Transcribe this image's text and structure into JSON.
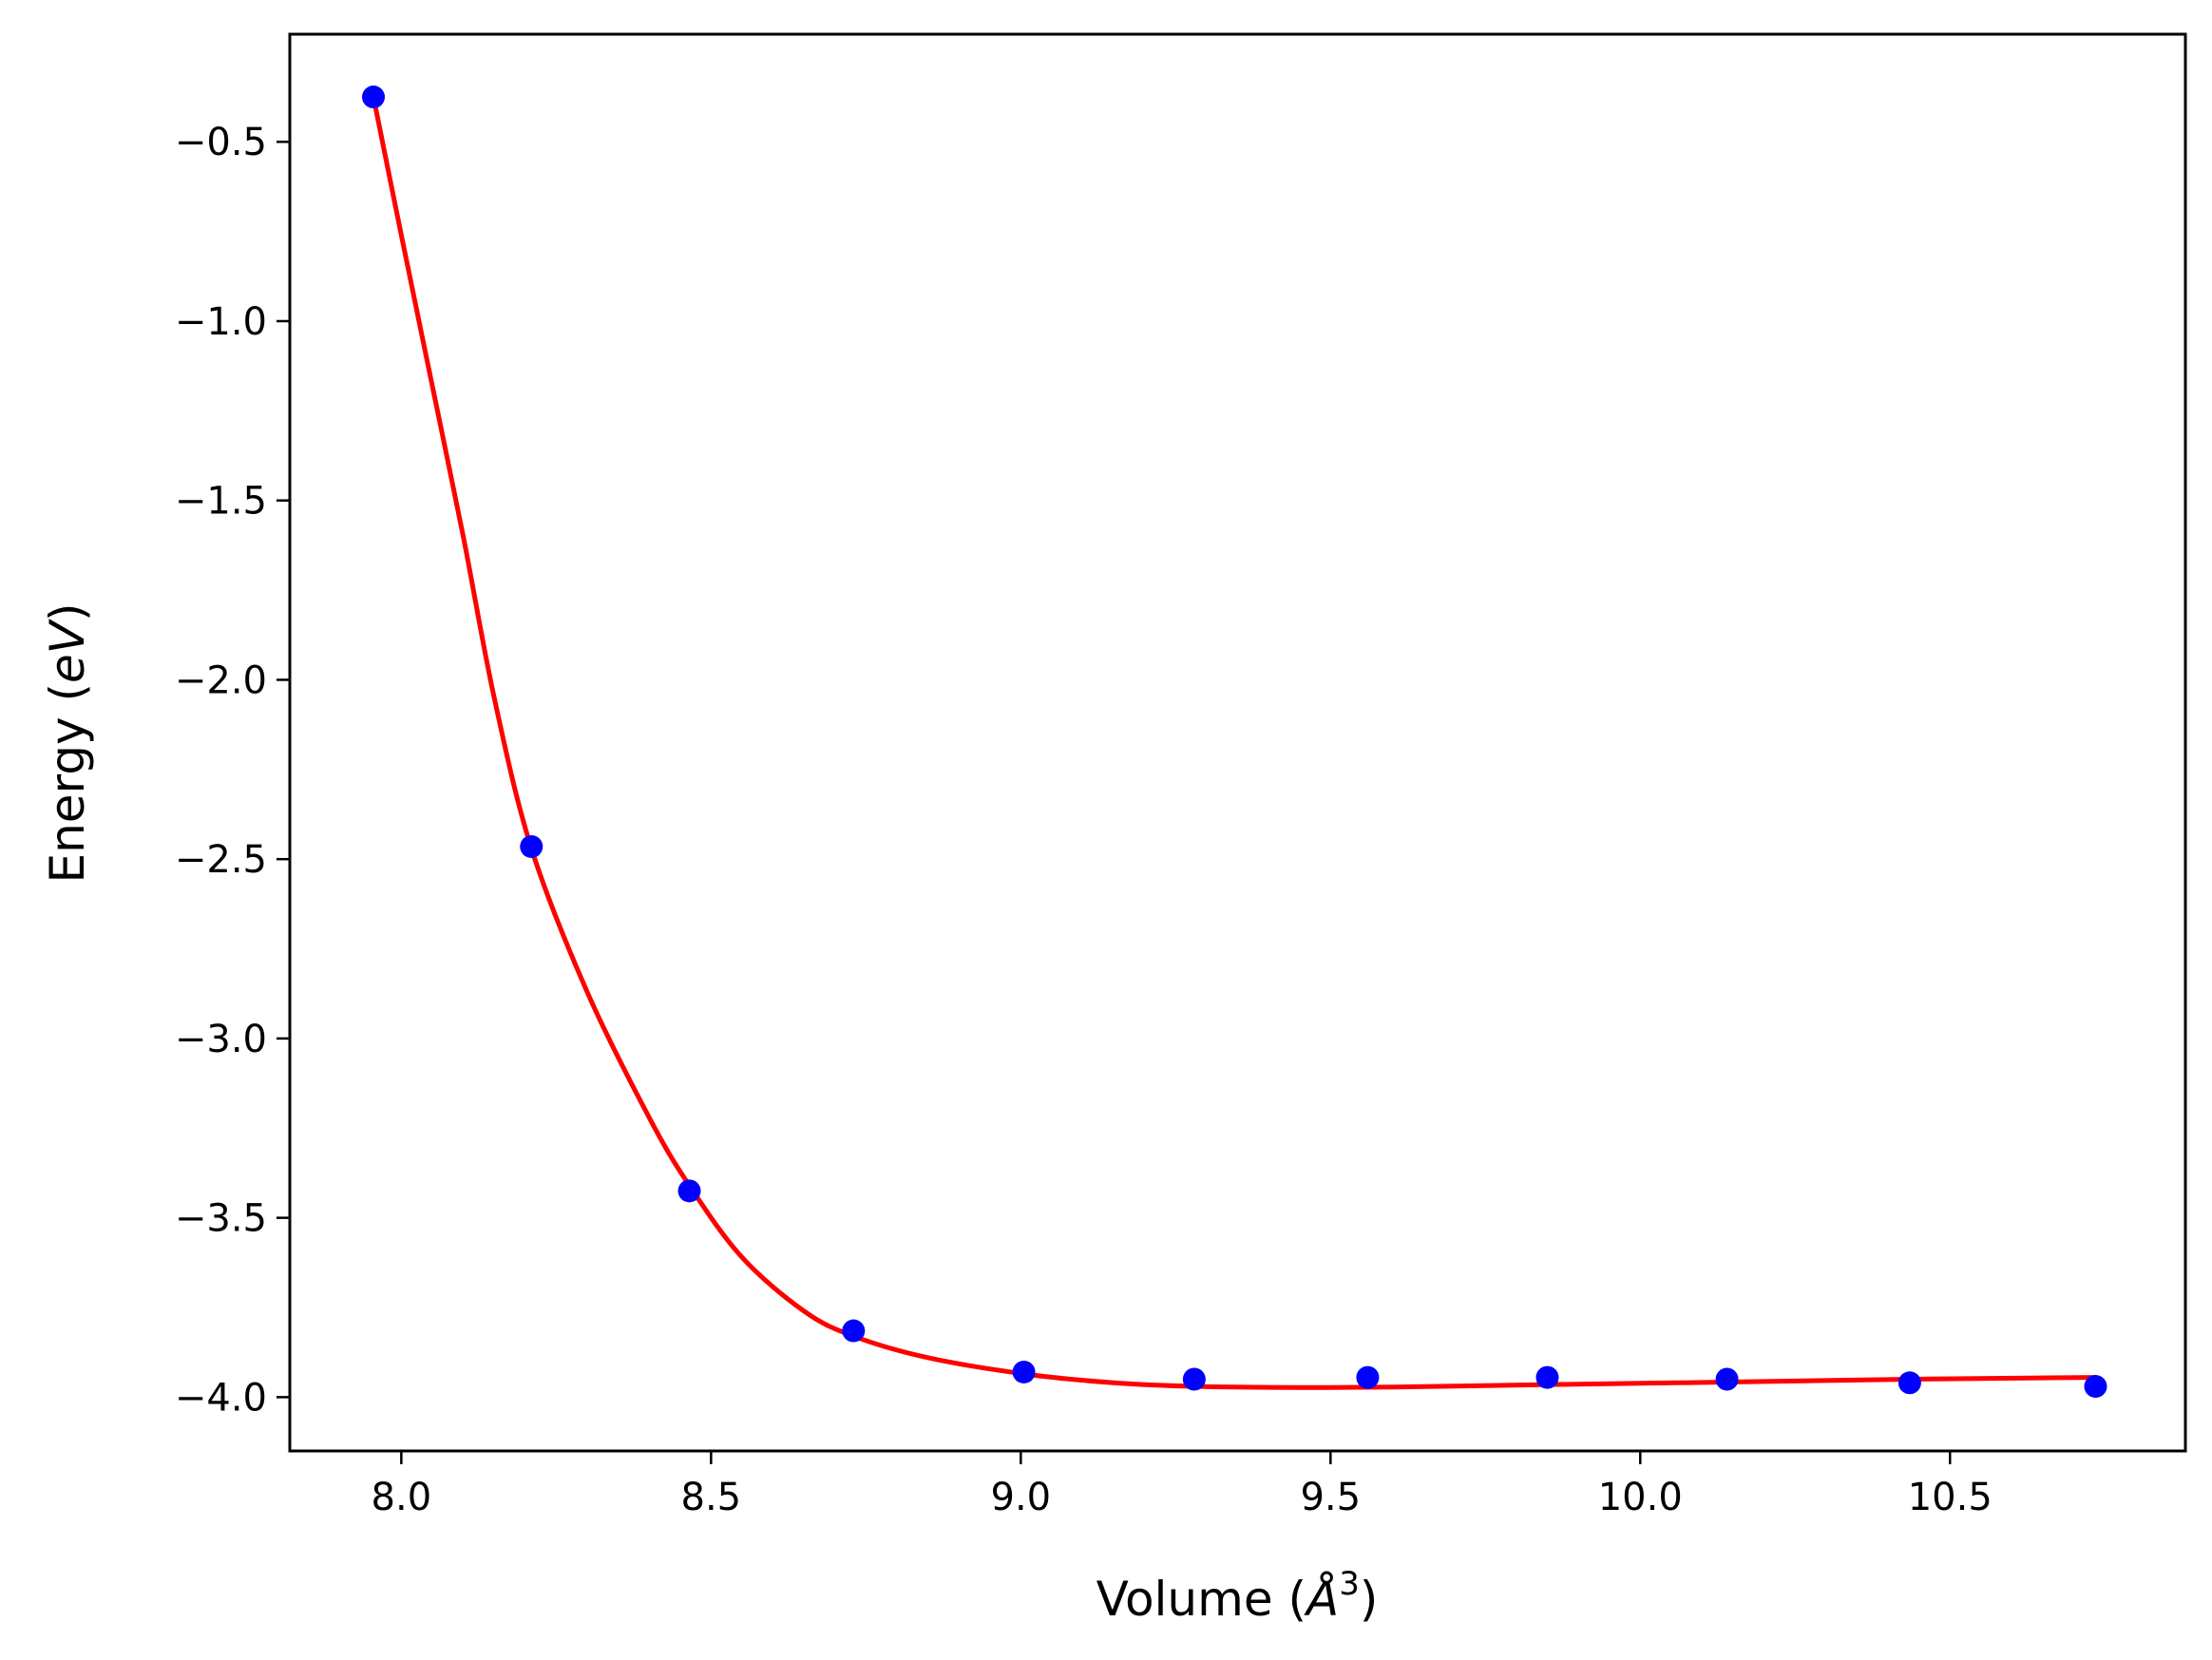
{
  "chart_data": {
    "type": "scatter",
    "title": "",
    "xlabel_main": "Volume (",
    "xlabel_italic": "Å",
    "xlabel_sup": "3",
    "xlabel_close": ")",
    "ylabel_main": "Energy (",
    "ylabel_italic": "eV",
    "ylabel_close": ")",
    "xlim": [
      7.82,
      10.88
    ],
    "ylim": [
      -4.15,
      -0.2
    ],
    "xticks": [
      8.0,
      8.5,
      9.0,
      9.5,
      10.0,
      10.5
    ],
    "xtick_labels": [
      "8.0",
      "8.5",
      "9.0",
      "9.5",
      "10.0",
      "10.5"
    ],
    "yticks": [
      -0.5,
      -1.0,
      -1.5,
      -2.0,
      -2.5,
      -3.0,
      -3.5,
      -4.0
    ],
    "ytick_labels": [
      "−0.5",
      "−1.0",
      "−1.5",
      "−2.0",
      "−2.5",
      "−3.0",
      "−3.5",
      "−4.0"
    ],
    "grid": false,
    "series": [
      {
        "kind": "points",
        "color": "#0000ff",
        "x": [
          7.955,
          8.21,
          8.465,
          8.73,
          9.005,
          9.28,
          9.56,
          9.85,
          10.14,
          10.435,
          10.735
        ],
        "y": [
          -0.375,
          -2.465,
          -3.425,
          -3.815,
          -3.93,
          -3.95,
          -3.945,
          -3.945,
          -3.95,
          -3.96,
          -3.97
        ]
      },
      {
        "kind": "fit",
        "color": "#ff0000",
        "x": [
          7.955,
          8.0,
          8.05,
          8.1,
          8.15,
          8.21,
          8.3,
          8.4,
          8.465,
          8.55,
          8.65,
          8.73,
          8.85,
          9.005,
          9.15,
          9.28,
          9.45,
          9.6,
          9.85,
          10.14,
          10.435,
          10.735
        ],
        "y": [
          -0.375,
          -0.76,
          -1.18,
          -1.6,
          -2.05,
          -2.47,
          -2.87,
          -3.22,
          -3.41,
          -3.61,
          -3.76,
          -3.83,
          -3.89,
          -3.935,
          -3.96,
          -3.97,
          -3.973,
          -3.972,
          -3.965,
          -3.958,
          -3.95,
          -3.945
        ]
      }
    ]
  }
}
